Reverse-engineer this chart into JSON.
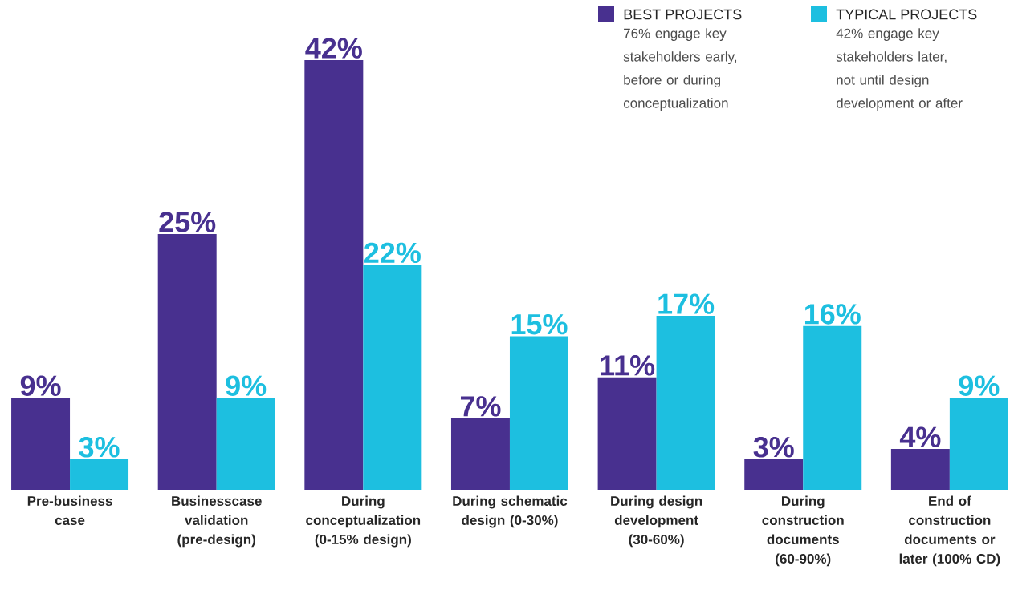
{
  "chart_data": {
    "type": "bar",
    "categories": [
      "Pre-business case",
      "Businesscase validation (pre-design)",
      "During conceptualization (0-15% design)",
      "During schematic design (0-30%)",
      "During design development (30-60%)",
      "During construction documents (60-90%)",
      "End of construction documents or later (100% CD)"
    ],
    "series": [
      {
        "name": "BEST PROJECTS",
        "color": "#48308f",
        "values": [
          9,
          25,
          42,
          7,
          11,
          3,
          4
        ],
        "value_labels": [
          "9%",
          "25%",
          "42%",
          "7%",
          "11%",
          "3%",
          "4%"
        ]
      },
      {
        "name": "TYPICAL PROJECTS",
        "color": "#1dbfe0",
        "values": [
          3,
          9,
          22,
          15,
          17,
          16,
          9
        ],
        "value_labels": [
          "3%",
          "9%",
          "22%",
          "15%",
          "17%",
          "16%",
          "9%"
        ]
      }
    ],
    "annotations": [
      "76% engage key stakeholders early, before or during conceptualization",
      "42% engage key stakeholders later, not until design development or after"
    ],
    "legend": "top right",
    "tick_labels": "x"
  }
}
